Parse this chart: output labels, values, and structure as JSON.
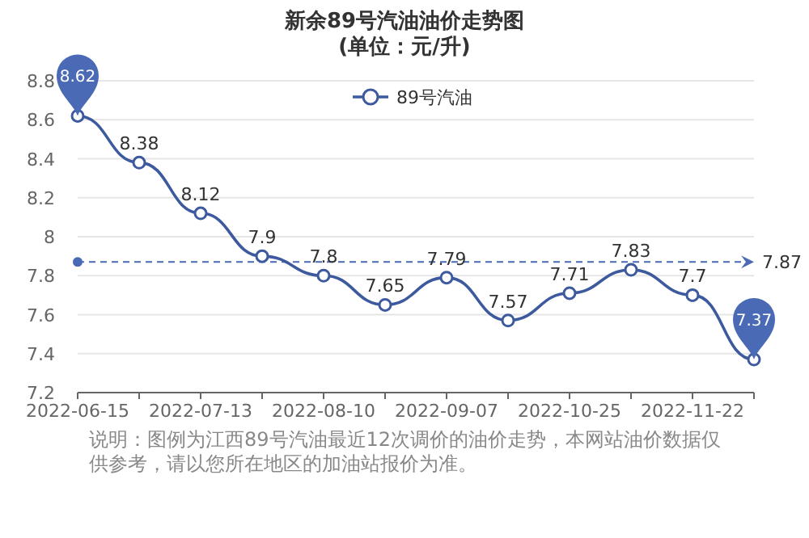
{
  "chart_data": {
    "type": "line",
    "title": "新余89号汽油油价走势图",
    "subtitle": "(单位：元/升)",
    "categories": [
      "2022-06-15",
      null,
      "2022-07-13",
      null,
      "2022-08-10",
      null,
      "2022-09-07",
      null,
      "2022-10-25",
      null,
      "2022-11-22",
      null
    ],
    "series": [
      {
        "name": "89号汽油",
        "color": "#3d5a9e",
        "values": [
          8.62,
          8.38,
          8.12,
          7.9,
          7.8,
          7.65,
          7.79,
          7.57,
          7.71,
          7.83,
          7.7,
          7.37
        ],
        "value_labels": [
          null,
          "8.38",
          "8.12",
          "7.9",
          "7.8",
          "7.65",
          "7.79",
          "7.57",
          "7.71",
          "7.83",
          "7.7",
          null
        ]
      }
    ],
    "ylim": [
      7.2,
      8.8
    ],
    "yticks": [
      7.2,
      7.4,
      7.6,
      7.8,
      8,
      8.2,
      8.4,
      8.6,
      8.8
    ],
    "grid": "y",
    "legend": "top",
    "marker": "circle",
    "line_style": "solid",
    "ref_lines": [
      {
        "axis": "y",
        "value": 7.87,
        "label": "7.87",
        "line_style": "dashed",
        "color": "#4a6ab5"
      }
    ],
    "annotations": [
      {
        "text": "8.62",
        "x": "2022-06-15",
        "y": 8.62
      },
      {
        "text": "7.37",
        "y": 7.37
      },
      "说明：图例为江西89号汽油最近12次调价的油价走势，本网站油价数据仅供参考，请以您所在地区的加油站报价为准。"
    ]
  }
}
